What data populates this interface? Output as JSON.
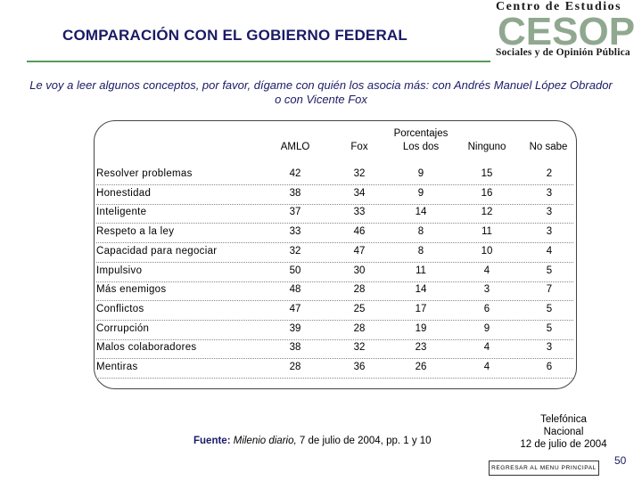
{
  "title": "COMPARACIÓN CON EL GOBIERNO FEDERAL",
  "logo": {
    "line1": "Centro de Estudios",
    "mark": "CESOP",
    "line2": "Sociales y de Opinión Pública",
    "colors": {
      "mark": "#8fa88f",
      "text": "#1a1a1a"
    }
  },
  "question": "Le voy a leer algunos conceptos, por favor, dígame con quién los asocia más: con Andrés Manuel López Obrador o con Vicente Fox",
  "table": {
    "group_header": "Porcentajes",
    "columns": [
      "AMLO",
      "Fox",
      "Los dos",
      "Ninguno",
      "No sabe"
    ],
    "rows": [
      {
        "label": "Resolver problemas",
        "values": [
          "42",
          "32",
          "9",
          "15",
          "2"
        ]
      },
      {
        "label": "Honestidad",
        "values": [
          "38",
          "34",
          "9",
          "16",
          "3"
        ]
      },
      {
        "label": "Inteligente",
        "values": [
          "37",
          "33",
          "14",
          "12",
          "3"
        ]
      },
      {
        "label": "Respeto a la ley",
        "values": [
          "33",
          "46",
          "8",
          "11",
          "3"
        ]
      },
      {
        "label": "Capacidad para negociar",
        "values": [
          "32",
          "47",
          "8",
          "10",
          "4"
        ]
      },
      {
        "label": "Impulsivo",
        "values": [
          "50",
          "30",
          "11",
          "4",
          "5"
        ]
      },
      {
        "label": "Más enemigos",
        "values": [
          "48",
          "28",
          "14",
          "3",
          "7"
        ]
      },
      {
        "label": "Conflictos",
        "values": [
          "47",
          "25",
          "17",
          "6",
          "5"
        ]
      },
      {
        "label": "Corrupción",
        "values": [
          "39",
          "28",
          "19",
          "9",
          "5"
        ]
      },
      {
        "label": "Malos colaboradores",
        "values": [
          "38",
          "32",
          "23",
          "4",
          "3"
        ]
      },
      {
        "label": "Mentiras",
        "values": [
          "28",
          "36",
          "26",
          "4",
          "6"
        ]
      }
    ]
  },
  "source": {
    "label": "Fuente:",
    "publication": "Milenio diario,",
    "detail": " 7 de julio de 2004, pp. 1 y 10"
  },
  "agency": {
    "line1": "Telefónica",
    "line2": "Nacional",
    "line3": "12 de julio de 2004"
  },
  "nav": {
    "menu_button": "REGRESAR AL MENU PRINCIPAL"
  },
  "page_number": "50",
  "colors": {
    "title": "#1a1a66",
    "rule": "#5a9a5a"
  }
}
